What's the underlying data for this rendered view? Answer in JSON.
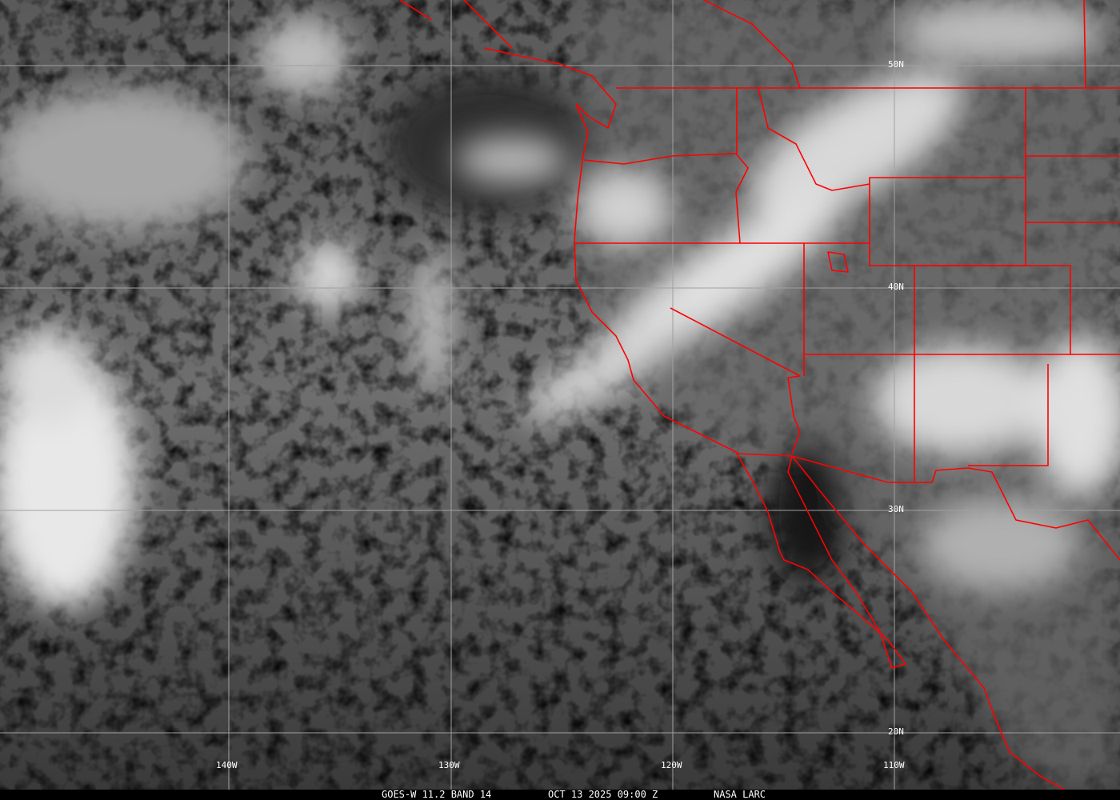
{
  "image": {
    "type": "infrared satellite image",
    "border_color": "#ff0000",
    "grid_color": "#a0a0a0"
  },
  "grid": {
    "latitude_labels": [
      "50N",
      "40N",
      "30N",
      "20N"
    ],
    "longitude_labels": [
      "140W",
      "130W",
      "120W",
      "110W"
    ]
  },
  "caption": {
    "product": "GOES-W 11.2 BAND 14",
    "datetime": "OCT 13 2025 09:00 Z",
    "source": "NASA LARC"
  }
}
